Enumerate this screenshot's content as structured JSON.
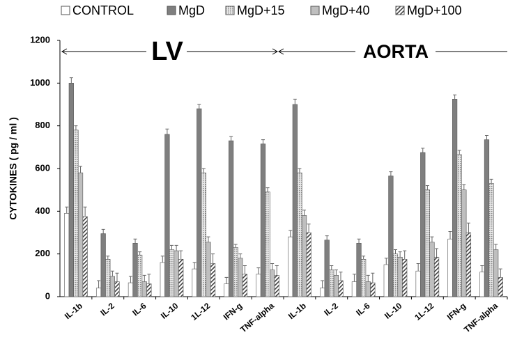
{
  "chart_data": {
    "type": "bar",
    "y_label": "CYTOKINES  ( pg / ml )",
    "annotations": [
      "LV",
      "AORTA"
    ],
    "categories": [
      "IL-1b",
      "IL-2",
      "IL-6",
      "IL-10",
      "1L-12",
      "IFN-g",
      "TNF-alpha",
      "IL-1b",
      "IL-2",
      "IL-6",
      "IL-10",
      "1L-12",
      "IFN-g",
      "TNF-alpha"
    ],
    "series": [
      {
        "name": "CONTROL",
        "color": "#ffffff",
        "pattern": "solid",
        "values": [
          390,
          40,
          65,
          160,
          130,
          60,
          105,
          280,
          40,
          70,
          150,
          120,
          270,
          115
        ],
        "errors": [
          30,
          35,
          30,
          30,
          30,
          30,
          30,
          30,
          35,
          35,
          30,
          35,
          35,
          30
        ]
      },
      {
        "name": "MgD",
        "color": "#7f7f7f",
        "pattern": "solid",
        "values": [
          1000,
          295,
          250,
          760,
          880,
          730,
          715,
          900,
          265,
          250,
          565,
          675,
          925,
          735
        ],
        "errors": [
          25,
          20,
          20,
          25,
          20,
          20,
          20,
          25,
          20,
          20,
          20,
          20,
          20,
          20
        ]
      },
      {
        "name": "MgD+15",
        "color": "#b0b0b0",
        "pattern": "dots",
        "values": [
          780,
          175,
          195,
          220,
          580,
          230,
          490,
          580,
          125,
          175,
          200,
          500,
          665,
          530
        ],
        "errors": [
          20,
          15,
          15,
          20,
          20,
          15,
          20,
          20,
          20,
          15,
          20,
          20,
          20,
          20
        ]
      },
      {
        "name": "MgD+40",
        "color": "#bfbfbf",
        "pattern": "solid",
        "values": [
          580,
          95,
          70,
          215,
          255,
          180,
          125,
          380,
          100,
          70,
          185,
          255,
          500,
          220
        ],
        "errors": [
          30,
          25,
          30,
          25,
          25,
          20,
          30,
          25,
          25,
          30,
          25,
          25,
          25,
          25
        ]
      },
      {
        "name": "MgD+100",
        "color": "#404040",
        "pattern": "hatch",
        "values": [
          375,
          70,
          60,
          175,
          155,
          105,
          100,
          300,
          75,
          65,
          175,
          185,
          300,
          90
        ],
        "errors": [
          45,
          40,
          45,
          40,
          45,
          40,
          45,
          40,
          40,
          45,
          40,
          40,
          45,
          40
        ]
      }
    ],
    "ylim": [
      0,
      1200
    ],
    "yticks": [
      0,
      200,
      400,
      600,
      800,
      1000,
      1200
    ],
    "grid": false
  }
}
